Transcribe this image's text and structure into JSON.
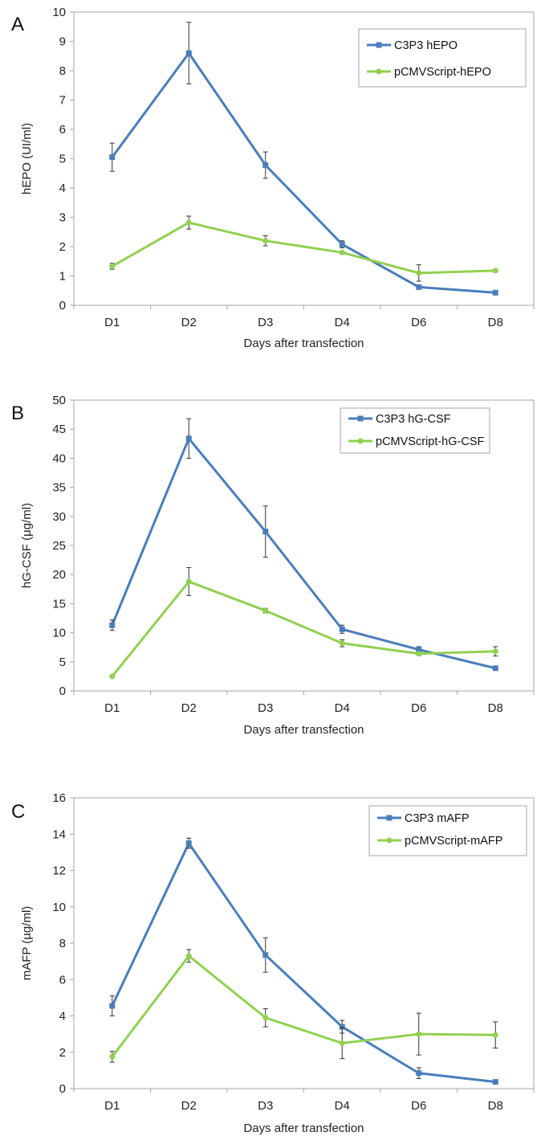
{
  "chart_data": [
    {
      "type": "line",
      "panel_label": "A",
      "categories": [
        "D1",
        "D2",
        "D3",
        "D4",
        "D6",
        "D8"
      ],
      "xlabel": "Days after transfection",
      "ylabel": "hEPO (UI/ml)",
      "ylim": [
        0,
        10
      ],
      "yticks": [
        0,
        1,
        2,
        3,
        4,
        5,
        6,
        7,
        8,
        9,
        10
      ],
      "legend_position": "top-right",
      "series": [
        {
          "name": "C3P3 hEPO",
          "color": "#4a7ebb",
          "marker": "square",
          "values": [
            5.05,
            8.6,
            4.78,
            2.08,
            0.62,
            0.43
          ],
          "errors": [
            0.48,
            1.05,
            0.45,
            0.12,
            0.05,
            0.03
          ]
        },
        {
          "name": "pCMVScript-hEPO",
          "color": "#92d050",
          "marker": "circle",
          "values": [
            1.33,
            2.82,
            2.2,
            1.8,
            1.1,
            1.18
          ],
          "errors": [
            0.1,
            0.22,
            0.17,
            0.05,
            0.28,
            0.05
          ]
        }
      ]
    },
    {
      "type": "line",
      "panel_label": "B",
      "categories": [
        "D1",
        "D2",
        "D3",
        "D4",
        "D6",
        "D8"
      ],
      "xlabel": "Days after transfection",
      "ylabel": "hG-CSF  (µg/ml)",
      "ylim": [
        0,
        50
      ],
      "yticks": [
        0,
        5,
        10,
        15,
        20,
        25,
        30,
        35,
        40,
        45,
        50
      ],
      "legend_position": "top-right",
      "series": [
        {
          "name": "C3P3 hG-CSF",
          "color": "#4a7ebb",
          "marker": "square",
          "values": [
            11.3,
            43.4,
            27.4,
            10.6,
            7.1,
            3.9
          ],
          "errors": [
            0.9,
            3.4,
            4.4,
            0.7,
            0.5,
            0.3
          ]
        },
        {
          "name": "pCMVScript-hG-CSF",
          "color": "#92d050",
          "marker": "circle",
          "values": [
            2.5,
            18.8,
            13.8,
            8.2,
            6.4,
            6.8
          ],
          "errors": [
            0.2,
            2.4,
            0.4,
            0.6,
            0.3,
            0.8
          ]
        }
      ]
    },
    {
      "type": "line",
      "panel_label": "C",
      "categories": [
        "D1",
        "D2",
        "D3",
        "D4",
        "D6",
        "D8"
      ],
      "xlabel": "Days after transfection",
      "ylabel": "mAFP  (µg/ml)",
      "ylim": [
        0,
        16
      ],
      "yticks": [
        0,
        2,
        4,
        6,
        8,
        10,
        12,
        14,
        16
      ],
      "legend_position": "top-right",
      "series": [
        {
          "name": "C3P3 mAFP",
          "color": "#4a7ebb",
          "marker": "square",
          "values": [
            4.55,
            13.5,
            7.35,
            3.4,
            0.85,
            0.37
          ],
          "errors": [
            0.55,
            0.28,
            0.95,
            0.35,
            0.3,
            0.05
          ]
        },
        {
          "name": "pCMVScript-mAFP",
          "color": "#92d050",
          "marker": "circle",
          "values": [
            1.75,
            7.3,
            3.9,
            2.5,
            3.0,
            2.95
          ],
          "errors": [
            0.3,
            0.35,
            0.5,
            0.85,
            1.15,
            0.72
          ]
        }
      ]
    }
  ]
}
